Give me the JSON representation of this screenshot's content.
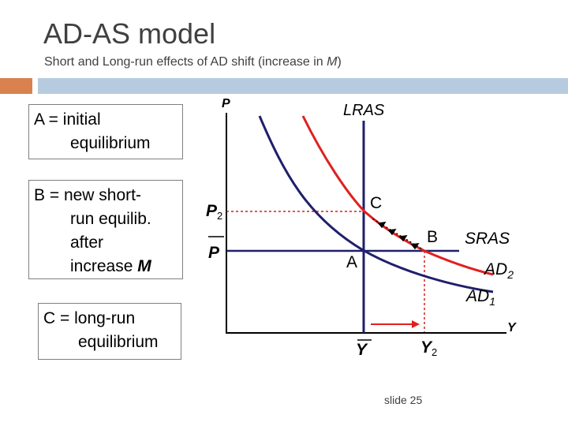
{
  "header": {
    "title": "AD-AS model",
    "subtitle": "Short and Long-run effects of AD shift (increase in ",
    "subtitle_var": "M",
    "subtitle_end": ")"
  },
  "legend": {
    "a_line1": "A = initial",
    "a_line2": "equilibrium",
    "b_line1": "B = new short-",
    "b_line2": "run equilib.",
    "b_line3": "after",
    "b_line4": "increase ",
    "b_var": "M",
    "c_line1": "C = long-run",
    "c_line2": "equilibrium"
  },
  "diagram": {
    "y_axis": "P",
    "x_axis": "Y",
    "lras": "LRAS",
    "sras": "SRAS",
    "ad2": "AD",
    "ad2_sub": "2",
    "ad1": "AD",
    "ad1_sub": "1",
    "point_a": "A",
    "point_b": "B",
    "point_c": "C",
    "p2": "P",
    "p2_sub": "2",
    "p_bar": "P",
    "y_bar": "Y",
    "y2": "Y",
    "y2_sub": "2",
    "colors": {
      "axis": "#000000",
      "ad": "#1f1f6b",
      "shifted": "#e02020",
      "guide": "#d02020"
    }
  },
  "footer": {
    "slide": "slide 25"
  }
}
